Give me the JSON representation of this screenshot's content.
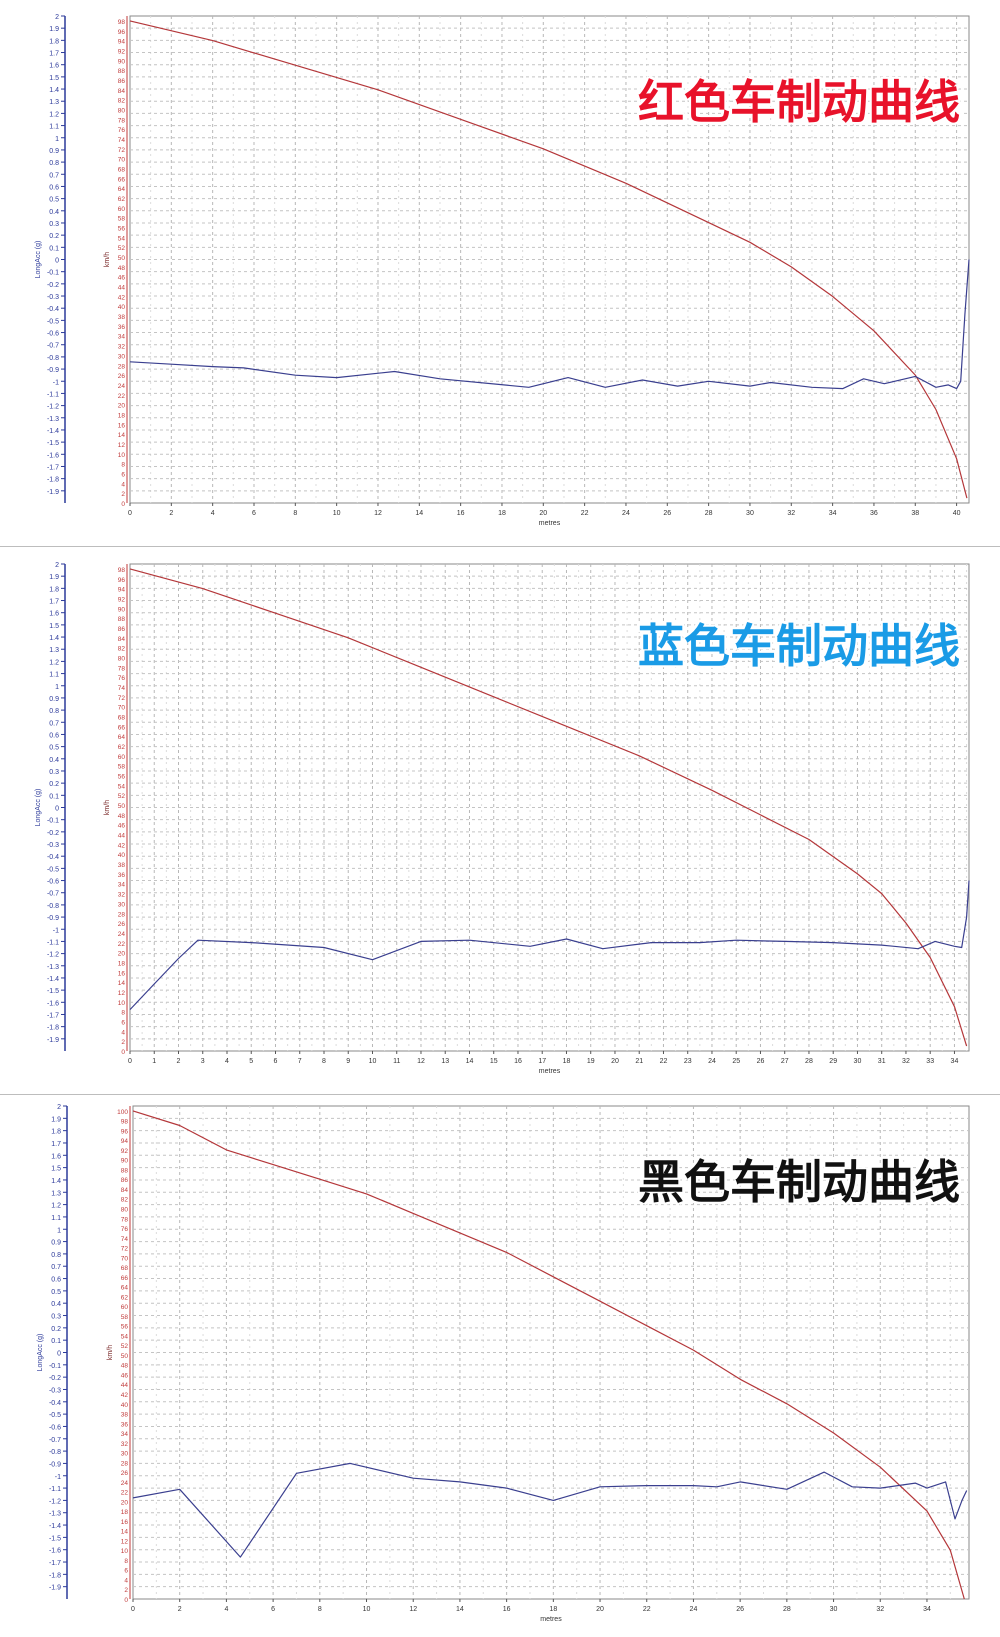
{
  "charts": [
    {
      "title": "红色车制动曲线",
      "title_color": "#e8122a",
      "xlabel": "metres",
      "y_left_label": "LongAcc (g)",
      "y_right_label": "km/h",
      "x_ticks": [
        "0",
        "2",
        "4",
        "6",
        "8",
        "10",
        "12",
        "14",
        "16",
        "18",
        "20",
        "22",
        "24",
        "26",
        "28",
        "30",
        "32",
        "34",
        "36",
        "38",
        "40"
      ],
      "acc_ticks": [
        "2",
        "1.9",
        "1.8",
        "1.7",
        "1.6",
        "1.5",
        "1.4",
        "1.3",
        "1.2",
        "1.1",
        "1",
        "0.9",
        "0.8",
        "0.7",
        "0.6",
        "0.5",
        "0.4",
        "0.3",
        "0.2",
        "0.1",
        "0",
        "-0.1",
        "-0.2",
        "-0.3",
        "-0.4",
        "-0.5",
        "-0.6",
        "-0.7",
        "-0.8",
        "-0.9",
        "-1",
        "-1.1",
        "-1.2",
        "-1.3",
        "-1.4",
        "-1.5",
        "-1.6",
        "-1.7",
        "-1.8",
        "-1.9"
      ],
      "speed_ticks": [
        "98",
        "96",
        "94",
        "92",
        "90",
        "88",
        "86",
        "84",
        "82",
        "80",
        "78",
        "76",
        "74",
        "72",
        "70",
        "68",
        "66",
        "64",
        "62",
        "60",
        "58",
        "56",
        "54",
        "52",
        "50",
        "48",
        "46",
        "44",
        "42",
        "40",
        "38",
        "36",
        "34",
        "32",
        "30",
        "28",
        "26",
        "24",
        "22",
        "20",
        "18",
        "16",
        "14",
        "12",
        "10",
        "8",
        "6",
        "4",
        "2",
        "0"
      ]
    },
    {
      "title": "蓝色车制动曲线",
      "title_color": "#1a9be6",
      "xlabel": "metres",
      "y_left_label": "LongAcc (g)",
      "y_right_label": "km/h",
      "x_ticks": [
        "0",
        "1",
        "2",
        "3",
        "4",
        "5",
        "6",
        "7",
        "8",
        "9",
        "10",
        "11",
        "12",
        "13",
        "14",
        "15",
        "16",
        "17",
        "18",
        "19",
        "20",
        "21",
        "22",
        "23",
        "24",
        "25",
        "26",
        "27",
        "28",
        "29",
        "30",
        "31",
        "32",
        "33",
        "34"
      ],
      "acc_ticks": [
        "2",
        "1.9",
        "1.8",
        "1.7",
        "1.6",
        "1.5",
        "1.4",
        "1.3",
        "1.2",
        "1.1",
        "1",
        "0.9",
        "0.8",
        "0.7",
        "0.6",
        "0.5",
        "0.4",
        "0.3",
        "0.2",
        "0.1",
        "0",
        "-0.1",
        "-0.2",
        "-0.3",
        "-0.4",
        "-0.5",
        "-0.6",
        "-0.7",
        "-0.8",
        "-0.9",
        "-1",
        "-1.1",
        "-1.2",
        "-1.3",
        "-1.4",
        "-1.5",
        "-1.6",
        "-1.7",
        "-1.8",
        "-1.9"
      ],
      "speed_ticks": [
        "98",
        "96",
        "94",
        "92",
        "90",
        "88",
        "86",
        "84",
        "82",
        "80",
        "78",
        "76",
        "74",
        "72",
        "70",
        "68",
        "66",
        "64",
        "62",
        "60",
        "58",
        "56",
        "54",
        "52",
        "50",
        "48",
        "46",
        "44",
        "42",
        "40",
        "38",
        "36",
        "34",
        "32",
        "30",
        "28",
        "26",
        "24",
        "22",
        "20",
        "18",
        "16",
        "14",
        "12",
        "10",
        "8",
        "6",
        "4",
        "2",
        "0"
      ]
    },
    {
      "title": "黑色车制动曲线",
      "title_color": "#111111",
      "xlabel": "metres",
      "y_left_label": "LongAcc (g)",
      "y_right_label": "km/h",
      "x_ticks": [
        "0",
        "2",
        "4",
        "6",
        "8",
        "10",
        "12",
        "14",
        "16",
        "18",
        "20",
        "22",
        "24",
        "26",
        "28",
        "30",
        "32",
        "34"
      ],
      "acc_ticks": [
        "2",
        "1.9",
        "1.8",
        "1.7",
        "1.6",
        "1.5",
        "1.4",
        "1.3",
        "1.2",
        "1.1",
        "1",
        "0.9",
        "0.8",
        "0.7",
        "0.6",
        "0.5",
        "0.4",
        "0.3",
        "0.2",
        "0.1",
        "0",
        "-0.1",
        "-0.2",
        "-0.3",
        "-0.4",
        "-0.5",
        "-0.6",
        "-0.7",
        "-0.8",
        "-0.9",
        "-1",
        "-1.1",
        "-1.2",
        "-1.3",
        "-1.4",
        "-1.5",
        "-1.6",
        "-1.7",
        "-1.8",
        "-1.9"
      ],
      "speed_ticks": [
        "100",
        "98",
        "96",
        "94",
        "92",
        "90",
        "88",
        "86",
        "84",
        "82",
        "80",
        "78",
        "76",
        "74",
        "72",
        "70",
        "68",
        "66",
        "64",
        "62",
        "60",
        "58",
        "56",
        "54",
        "52",
        "50",
        "48",
        "46",
        "44",
        "42",
        "40",
        "38",
        "36",
        "34",
        "32",
        "30",
        "28",
        "26",
        "24",
        "22",
        "20",
        "18",
        "16",
        "14",
        "12",
        "10",
        "8",
        "6",
        "4",
        "2",
        "0"
      ]
    }
  ],
  "chart_data": [
    {
      "type": "line",
      "title": "红色车制动曲线",
      "xlabel": "metres",
      "xlim": [
        0,
        40.6
      ],
      "axes": {
        "LongAcc (g)": [
          -2,
          2
        ],
        "km/h": [
          0,
          99
        ]
      },
      "grid": true,
      "series": [
        {
          "name": "km/h",
          "axis": "km/h",
          "color": "#b4373a",
          "points": [
            [
              0,
              98
            ],
            [
              4,
              94
            ],
            [
              8,
              89
            ],
            [
              12,
              84
            ],
            [
              16,
              78
            ],
            [
              20,
              72
            ],
            [
              24,
              65
            ],
            [
              28,
              57
            ],
            [
              30,
              53
            ],
            [
              32,
              48
            ],
            [
              34,
              42
            ],
            [
              36,
              35
            ],
            [
              38,
              26
            ],
            [
              39,
              19
            ],
            [
              40,
              9
            ],
            [
              40.5,
              1
            ]
          ]
        },
        {
          "name": "LongAcc (g)",
          "axis": "LongAcc (g)",
          "color": "#3a3f8f",
          "points": [
            [
              0,
              -0.84
            ],
            [
              2,
              -0.86
            ],
            [
              4,
              -0.88
            ],
            [
              5.5,
              -0.89
            ],
            [
              8,
              -0.95
            ],
            [
              10,
              -0.97
            ],
            [
              12.8,
              -0.92
            ],
            [
              15,
              -0.98
            ],
            [
              19.3,
              -1.05
            ],
            [
              21.2,
              -0.97
            ],
            [
              23,
              -1.05
            ],
            [
              24.8,
              -0.99
            ],
            [
              26.5,
              -1.04
            ],
            [
              28,
              -1.0
            ],
            [
              30,
              -1.04
            ],
            [
              31,
              -1.01
            ],
            [
              33,
              -1.05
            ],
            [
              34.5,
              -1.06
            ],
            [
              35.5,
              -0.98
            ],
            [
              36.5,
              -1.02
            ],
            [
              38,
              -0.96
            ],
            [
              39,
              -1.05
            ],
            [
              39.6,
              -1.03
            ],
            [
              40,
              -1.06
            ],
            [
              40.2,
              -1.0
            ],
            [
              40.4,
              -0.45
            ],
            [
              40.6,
              0.0
            ]
          ]
        }
      ]
    },
    {
      "type": "line",
      "title": "蓝色车制动曲线",
      "xlabel": "metres",
      "xlim": [
        0,
        34.6
      ],
      "axes": {
        "LongAcc (g)": [
          -2,
          2
        ],
        "km/h": [
          0,
          99
        ]
      },
      "grid": true,
      "series": [
        {
          "name": "km/h",
          "axis": "km/h",
          "color": "#b4373a",
          "points": [
            [
              0,
              98
            ],
            [
              3,
              94
            ],
            [
              6,
              89
            ],
            [
              9,
              84
            ],
            [
              12,
              78
            ],
            [
              15,
              72
            ],
            [
              18,
              66
            ],
            [
              21,
              60
            ],
            [
              24,
              53
            ],
            [
              26,
              48
            ],
            [
              28,
              43
            ],
            [
              30,
              36
            ],
            [
              31,
              32
            ],
            [
              32,
              26
            ],
            [
              33,
              19
            ],
            [
              34,
              9
            ],
            [
              34.5,
              1
            ]
          ]
        },
        {
          "name": "LongAcc (g)",
          "axis": "LongAcc (g)",
          "color": "#3a3f8f",
          "points": [
            [
              0,
              -1.66
            ],
            [
              1,
              -1.45
            ],
            [
              2,
              -1.24
            ],
            [
              2.8,
              -1.09
            ],
            [
              5,
              -1.11
            ],
            [
              8,
              -1.15
            ],
            [
              10,
              -1.25
            ],
            [
              12,
              -1.1
            ],
            [
              14,
              -1.09
            ],
            [
              16.5,
              -1.14
            ],
            [
              18,
              -1.08
            ],
            [
              19.5,
              -1.16
            ],
            [
              21.5,
              -1.11
            ],
            [
              23.5,
              -1.11
            ],
            [
              25,
              -1.09
            ],
            [
              27,
              -1.1
            ],
            [
              29,
              -1.11
            ],
            [
              31,
              -1.13
            ],
            [
              32.5,
              -1.16
            ],
            [
              33.2,
              -1.1
            ],
            [
              34,
              -1.14
            ],
            [
              34.3,
              -1.15
            ],
            [
              34.5,
              -0.9
            ],
            [
              34.6,
              -0.6
            ]
          ]
        }
      ]
    },
    {
      "type": "line",
      "title": "黑色车制动曲线",
      "xlabel": "metres",
      "xlim": [
        0,
        35.8
      ],
      "axes": {
        "LongAcc (g)": [
          -2,
          2
        ],
        "km/h": [
          0,
          101
        ]
      },
      "grid": true,
      "series": [
        {
          "name": "km/h",
          "axis": "km/h",
          "color": "#b4373a",
          "points": [
            [
              0,
              100
            ],
            [
              2,
              97
            ],
            [
              4,
              92
            ],
            [
              6,
              89
            ],
            [
              8,
              86
            ],
            [
              10,
              83
            ],
            [
              12,
              79
            ],
            [
              14,
              75
            ],
            [
              16,
              71
            ],
            [
              18,
              66
            ],
            [
              20,
              61
            ],
            [
              22,
              56
            ],
            [
              24,
              51
            ],
            [
              26,
              45
            ],
            [
              28,
              40
            ],
            [
              30,
              34
            ],
            [
              32,
              27
            ],
            [
              34,
              18
            ],
            [
              35,
              10
            ],
            [
              35.6,
              0
            ]
          ]
        },
        {
          "name": "LongAcc (g)",
          "axis": "LongAcc (g)",
          "color": "#3a3f8f",
          "points": [
            [
              0,
              -1.18
            ],
            [
              2,
              -1.11
            ],
            [
              4.6,
              -1.66
            ],
            [
              7,
              -0.98
            ],
            [
              9.3,
              -0.9
            ],
            [
              12,
              -1.02
            ],
            [
              14,
              -1.05
            ],
            [
              16,
              -1.1
            ],
            [
              18,
              -1.2
            ],
            [
              20,
              -1.09
            ],
            [
              22,
              -1.08
            ],
            [
              24,
              -1.08
            ],
            [
              25,
              -1.09
            ],
            [
              26,
              -1.05
            ],
            [
              28,
              -1.11
            ],
            [
              29.6,
              -0.97
            ],
            [
              30.8,
              -1.09
            ],
            [
              32,
              -1.1
            ],
            [
              33.5,
              -1.06
            ],
            [
              34,
              -1.1
            ],
            [
              34.8,
              -1.05
            ],
            [
              35.2,
              -1.35
            ],
            [
              35.5,
              -1.2
            ],
            [
              35.7,
              -1.12
            ]
          ]
        }
      ]
    }
  ]
}
